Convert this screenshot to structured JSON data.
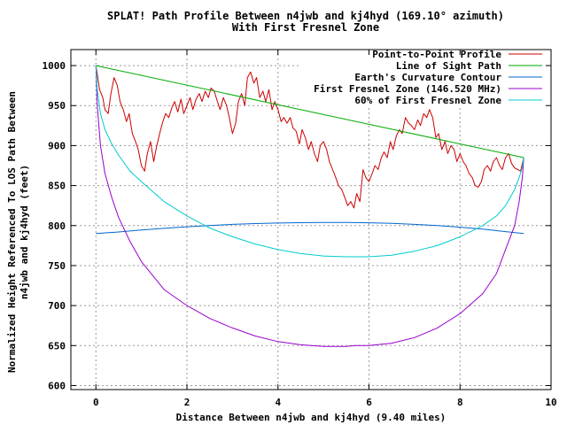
{
  "chart_data": {
    "type": "line",
    "title": "SPLAT! Path Profile Between n4jwb and kj4hyd (169.10° azimuth)",
    "subtitle": "With First Fresnel Zone",
    "xlabel": "Distance Between n4jwb and kj4hyd (9.40 miles)",
    "ylabel_line1": "Normalized Height Referenced To LOS Path Between",
    "ylabel_line2": "n4jwb and kj4hyd (feet)",
    "xlim": [
      -0.55,
      10
    ],
    "ylim": [
      595,
      1020
    ],
    "x_ticks": [
      0,
      2,
      4,
      6,
      8,
      10
    ],
    "y_ticks": [
      600,
      650,
      700,
      750,
      800,
      850,
      900,
      950,
      1000
    ],
    "grid": true,
    "legend_position": "top-right",
    "series": [
      {
        "name": "Point-to-Point Profile",
        "color": "#cc0000",
        "x": [
          0,
          0.08,
          0.15,
          0.2,
          0.27,
          0.33,
          0.4,
          0.47,
          0.53,
          0.6,
          0.67,
          0.73,
          0.8,
          0.87,
          0.93,
          1.0,
          1.07,
          1.13,
          1.2,
          1.27,
          1.33,
          1.4,
          1.47,
          1.53,
          1.6,
          1.67,
          1.73,
          1.8,
          1.87,
          1.93,
          2.0,
          2.07,
          2.13,
          2.2,
          2.27,
          2.33,
          2.4,
          2.47,
          2.53,
          2.6,
          2.67,
          2.73,
          2.8,
          2.87,
          2.93,
          3.0,
          3.07,
          3.13,
          3.2,
          3.27,
          3.33,
          3.4,
          3.47,
          3.53,
          3.6,
          3.67,
          3.73,
          3.8,
          3.87,
          3.93,
          4.0,
          4.07,
          4.13,
          4.2,
          4.27,
          4.33,
          4.4,
          4.47,
          4.53,
          4.6,
          4.67,
          4.73,
          4.8,
          4.87,
          4.93,
          5.0,
          5.07,
          5.13,
          5.2,
          5.27,
          5.33,
          5.4,
          5.47,
          5.53,
          5.6,
          5.67,
          5.73,
          5.8,
          5.87,
          5.93,
          6.0,
          6.07,
          6.13,
          6.2,
          6.27,
          6.33,
          6.4,
          6.47,
          6.53,
          6.6,
          6.67,
          6.73,
          6.8,
          6.87,
          6.93,
          7.0,
          7.07,
          7.13,
          7.2,
          7.27,
          7.33,
          7.4,
          7.47,
          7.53,
          7.6,
          7.67,
          7.73,
          7.8,
          7.87,
          7.93,
          8.0,
          8.07,
          8.13,
          8.2,
          8.27,
          8.33,
          8.4,
          8.47,
          8.53,
          8.6,
          8.67,
          8.73,
          8.8,
          8.87,
          8.93,
          9.0,
          9.07,
          9.13,
          9.2,
          9.27,
          9.33,
          9.4
        ],
        "y": [
          1000,
          970,
          960,
          945,
          940,
          965,
          985,
          975,
          955,
          945,
          930,
          940,
          915,
          905,
          895,
          875,
          868,
          890,
          905,
          880,
          898,
          915,
          930,
          940,
          935,
          948,
          955,
          942,
          958,
          940,
          950,
          960,
          945,
          958,
          965,
          955,
          968,
          960,
          972,
          968,
          955,
          945,
          960,
          950,
          935,
          915,
          928,
          955,
          965,
          950,
          985,
          992,
          978,
          985,
          960,
          968,
          955,
          970,
          945,
          955,
          945,
          930,
          935,
          928,
          935,
          922,
          918,
          902,
          920,
          910,
          895,
          905,
          890,
          880,
          900,
          905,
          895,
          880,
          870,
          860,
          850,
          845,
          835,
          825,
          830,
          822,
          840,
          830,
          870,
          860,
          855,
          865,
          875,
          870,
          885,
          892,
          885,
          905,
          895,
          912,
          920,
          915,
          935,
          928,
          925,
          920,
          932,
          925,
          940,
          935,
          945,
          935,
          910,
          915,
          895,
          905,
          890,
          900,
          895,
          880,
          890,
          880,
          875,
          865,
          860,
          850,
          848,
          855,
          870,
          875,
          868,
          880,
          885,
          875,
          870,
          885,
          890,
          878,
          872,
          870,
          868,
          885
        ],
        "x_n": [
          0,
          0.08,
          0.15,
          0.2,
          0.27,
          0.33,
          0.4,
          0.47,
          0.53,
          0.6,
          0.67,
          0.73,
          0.8,
          0.87,
          0.93,
          1.0,
          1.07,
          1.13,
          1.2,
          1.27,
          1.33,
          1.4,
          1.47,
          1.53,
          1.6,
          1.67,
          1.73,
          1.8,
          1.87,
          1.93,
          2.0,
          2.07,
          2.13,
          2.2,
          2.27,
          2.33,
          2.4,
          2.47,
          2.53,
          2.6,
          2.67,
          2.73,
          2.8,
          2.87,
          2.93,
          3.0,
          3.07,
          3.13,
          3.2,
          3.27,
          3.33,
          3.4,
          3.47,
          3.53,
          3.6,
          3.67,
          3.73,
          3.8,
          3.87,
          3.93,
          4.0,
          4.07,
          4.13,
          4.2,
          4.27,
          4.33,
          4.4,
          4.47,
          4.53,
          4.6,
          4.67,
          4.73,
          4.8,
          4.87,
          4.93,
          5.0,
          5.07,
          5.13,
          5.2,
          5.27,
          5.33,
          5.4,
          5.47,
          5.53,
          5.6,
          5.67,
          5.73,
          5.8,
          5.87,
          5.93,
          6.0,
          6.07,
          6.13,
          6.2,
          6.27,
          6.33,
          6.4,
          6.47,
          6.53,
          6.6,
          6.67,
          6.73,
          6.8,
          6.87,
          6.93,
          7.0,
          7.07,
          7.13,
          7.2,
          7.27,
          7.33,
          7.4,
          7.47,
          7.53,
          7.6,
          7.67,
          7.73,
          7.8,
          7.87,
          7.93,
          8.0,
          8.07,
          8.13,
          8.2,
          8.27,
          8.33,
          8.4,
          8.47,
          8.53,
          8.6,
          8.67,
          8.73,
          8.8,
          8.87,
          8.93,
          9.0,
          9.07,
          9.13,
          9.2,
          9.27,
          9.33,
          9.4
        ]
      },
      {
        "name": "Line of Sight Path",
        "color": "#00aa00",
        "x": [
          0,
          9.4
        ],
        "y": [
          1000,
          885
        ]
      },
      {
        "name": "Earth's Curvature Contour",
        "color": "#0066cc",
        "x": [
          0,
          0.5,
          1,
          1.5,
          2,
          2.5,
          3,
          3.5,
          4,
          4.5,
          5,
          5.5,
          6,
          6.5,
          7,
          7.5,
          8,
          8.5,
          9,
          9.4
        ],
        "y": [
          790,
          792,
          794.5,
          796.5,
          798.5,
          800,
          801.5,
          802.5,
          803.2,
          803.6,
          803.8,
          803.8,
          803.5,
          802.7,
          801.5,
          800,
          798,
          795.5,
          792.5,
          790
        ]
      },
      {
        "name": "First Fresnel Zone (146.520 MHz)",
        "color": "#9900cc",
        "x": [
          0,
          0.03,
          0.1,
          0.2,
          0.35,
          0.5,
          0.75,
          1,
          1.5,
          2,
          2.5,
          3,
          3.5,
          4,
          4.5,
          5,
          5.5,
          5.7,
          6,
          6.5,
          7,
          7.5,
          8,
          8.5,
          8.8,
          9,
          9.2,
          9.3,
          9.37,
          9.4
        ],
        "y": [
          1000,
          950,
          900,
          865,
          835,
          810,
          780,
          755,
          720,
          700,
          684,
          672,
          662,
          655,
          651,
          649,
          649,
          650,
          650,
          653,
          660,
          672,
          690,
          715,
          740,
          770,
          800,
          830,
          860,
          885
        ]
      },
      {
        "name": "60% of First Fresnel Zone",
        "color": "#00cccc",
        "x": [
          0,
          0.03,
          0.1,
          0.2,
          0.35,
          0.5,
          0.75,
          1,
          1.5,
          2,
          2.5,
          3,
          3.5,
          4,
          4.5,
          5,
          5.5,
          6,
          6.5,
          7,
          7.5,
          8,
          8.5,
          8.8,
          9,
          9.2,
          9.3,
          9.37,
          9.4
        ],
        "y": [
          1000,
          970,
          940,
          920,
          902,
          888,
          868,
          855,
          830,
          812,
          797,
          786,
          777,
          770,
          765,
          762,
          761,
          761,
          763,
          768,
          775,
          786,
          800,
          812,
          825,
          845,
          860,
          873,
          885
        ]
      }
    ]
  }
}
